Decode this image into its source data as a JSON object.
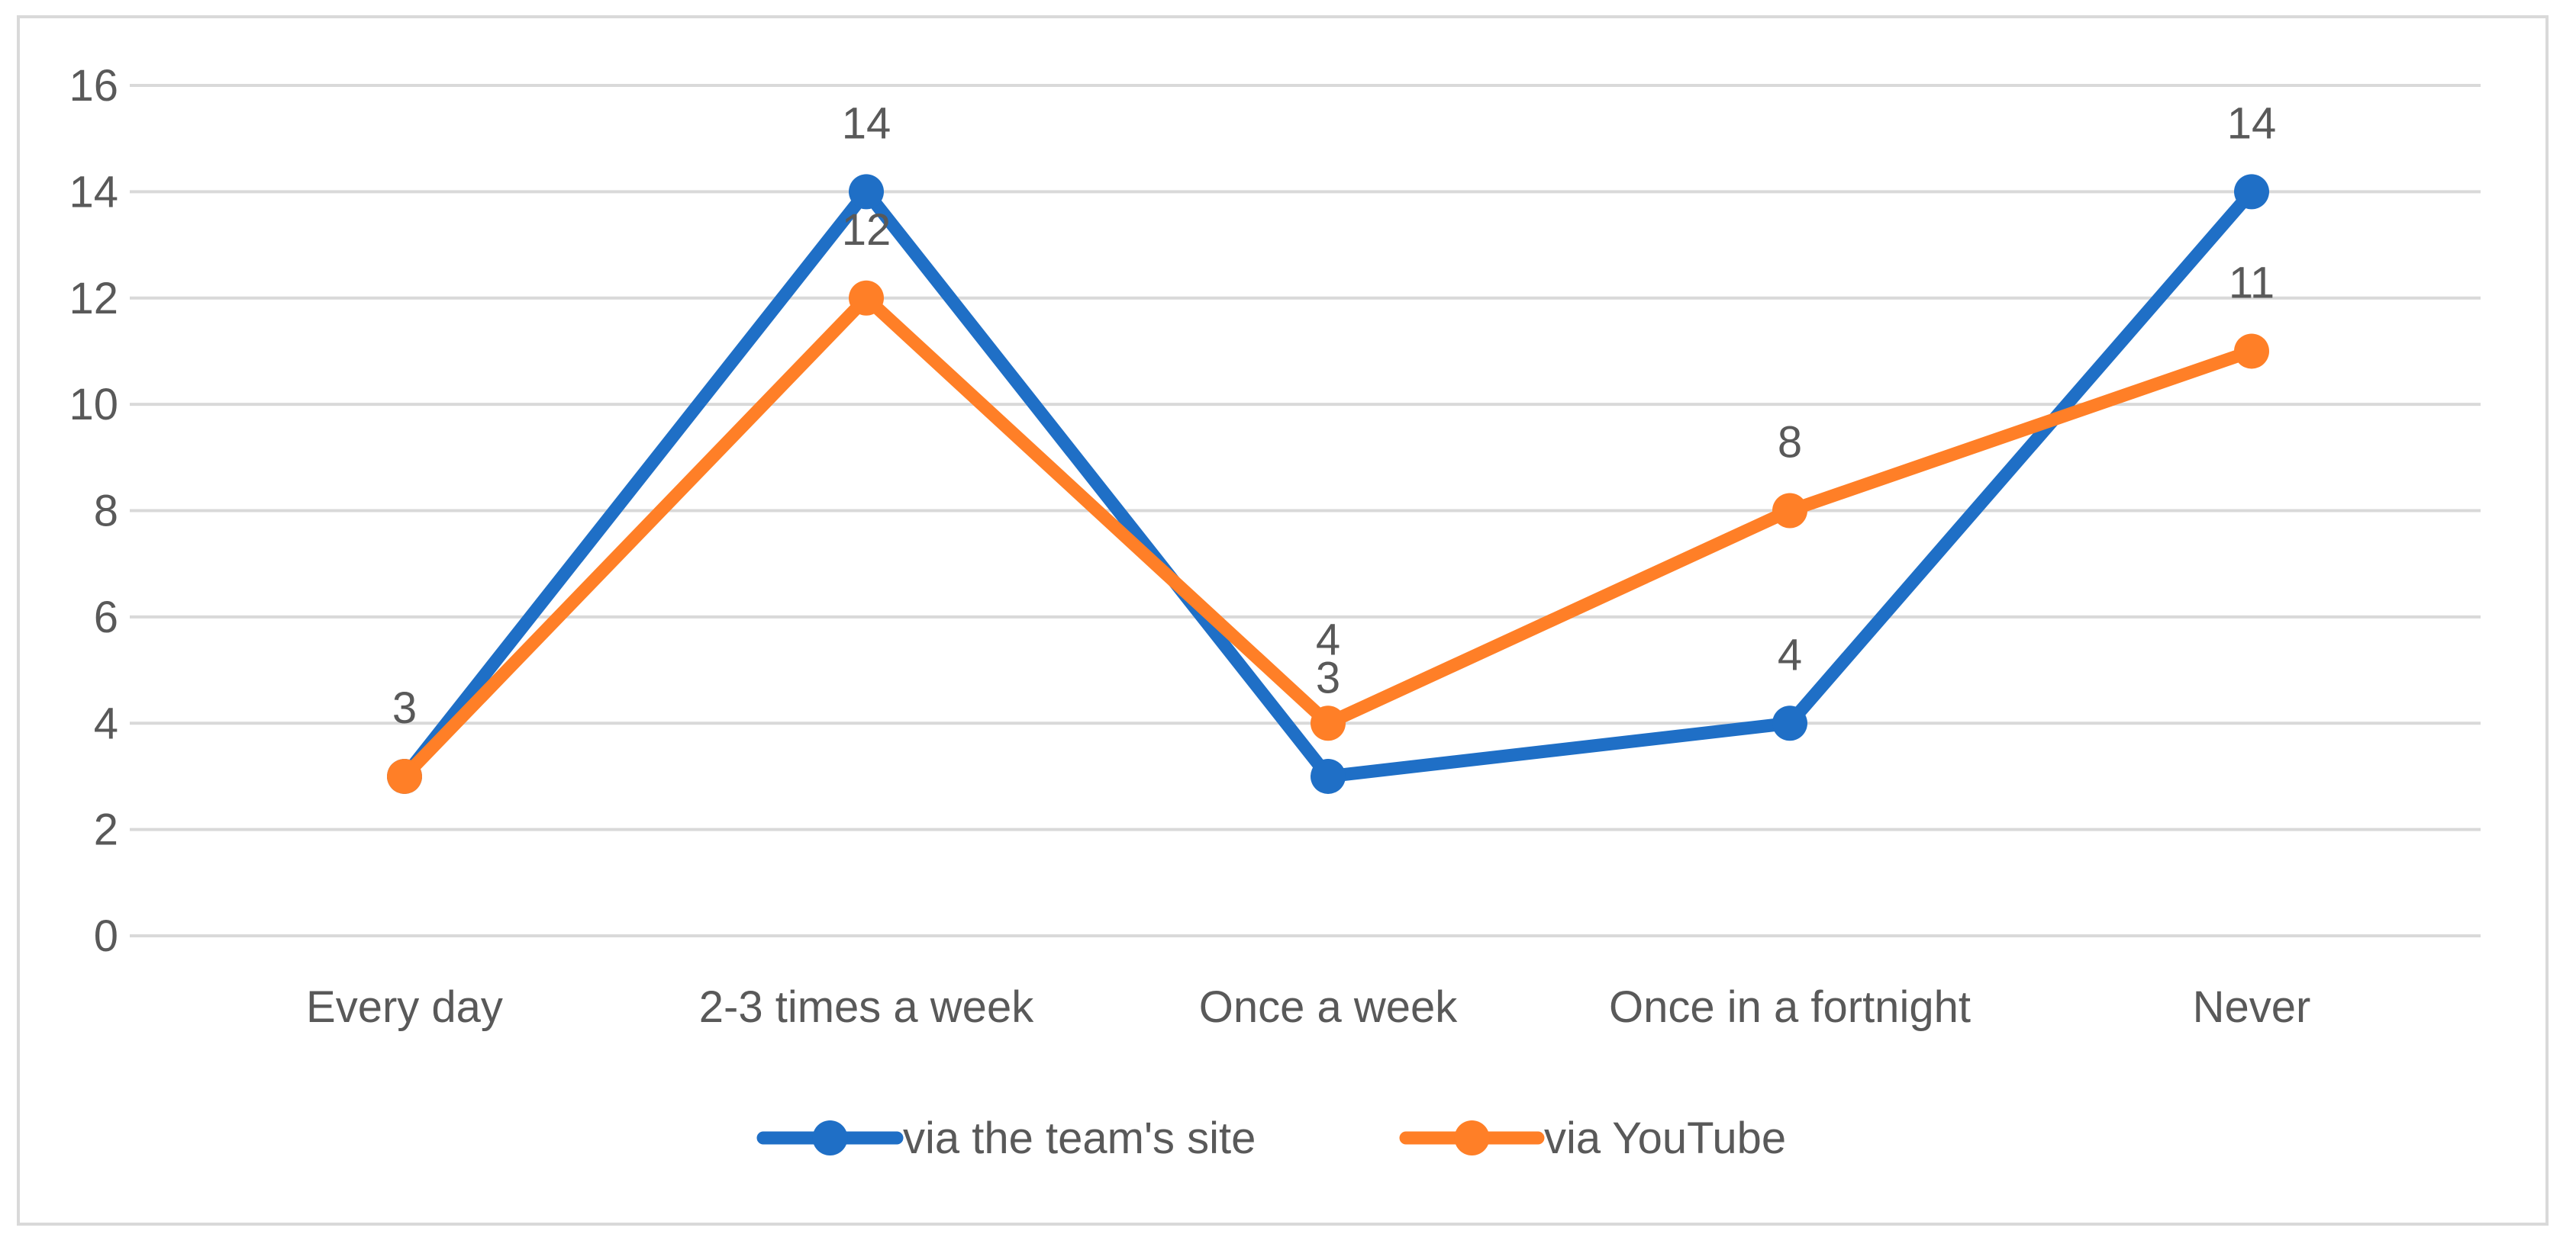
{
  "chart_data": {
    "type": "line",
    "categories": [
      "Every day",
      "2-3 times a week",
      "Once a week",
      "Once in a fortnight",
      "Never"
    ],
    "series": [
      {
        "name": "via the team's site",
        "values": [
          3,
          14,
          3,
          4,
          14
        ],
        "color": "#1f6fc6"
      },
      {
        "name": "via YouTube",
        "values": [
          3,
          12,
          4,
          8,
          11
        ],
        "color": "#ff7f27"
      }
    ],
    "ylim": [
      0,
      16
    ],
    "yticks": [
      0,
      2,
      4,
      6,
      8,
      10,
      12,
      14,
      16
    ],
    "grid": true,
    "legend_position": "bottom",
    "data_labels": true,
    "gridline_color": "#d9d9d9"
  }
}
